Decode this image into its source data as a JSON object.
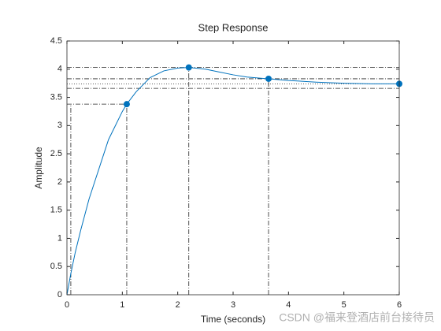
{
  "chart_data": {
    "type": "line",
    "title": "Step Response",
    "xlabel": "Time (seconds)",
    "ylabel": "Amplitude",
    "watermark": "CSDN @福来登酒店前台接待员",
    "xlim": [
      0,
      6
    ],
    "ylim": [
      0,
      4.5
    ],
    "xticks": [
      0,
      1,
      2,
      3,
      4,
      5,
      6
    ],
    "yticks": [
      0,
      0.5,
      1,
      1.5,
      2,
      2.5,
      3,
      3.5,
      4,
      4.5
    ],
    "series": [
      {
        "color": "#0072bd",
        "x": [
          0,
          0.07,
          0.15,
          0.25,
          0.4,
          0.5,
          0.75,
          1.0,
          1.08,
          1.25,
          1.5,
          1.75,
          2.0,
          2.2,
          2.5,
          2.75,
          3.0,
          3.25,
          3.5,
          3.64,
          4.0,
          4.5,
          5.0,
          5.5,
          6.0
        ],
        "values": [
          0,
          0.375,
          0.75,
          1.15,
          1.7,
          2.0,
          2.75,
          3.25,
          3.38,
          3.6,
          3.85,
          3.97,
          4.02,
          4.03,
          4.0,
          3.95,
          3.9,
          3.86,
          3.84,
          3.83,
          3.8,
          3.77,
          3.75,
          3.74,
          3.74
        ]
      },
      {
        "color": "#0072bd",
        "markers": true,
        "x": [
          1.08,
          2.2,
          3.64,
          6.0
        ],
        "values": [
          3.38,
          4.03,
          3.83,
          3.74
        ]
      }
    ],
    "ref_lines": [
      {
        "style": "dashdot",
        "x": [
          0.07,
          0.07
        ],
        "y": [
          0,
          3.38
        ]
      },
      {
        "style": "dashdot",
        "x": [
          0,
          1.08
        ],
        "y": [
          3.38,
          3.38
        ]
      },
      {
        "style": "dashdot",
        "x": [
          1.08,
          1.08
        ],
        "y": [
          0,
          3.38
        ]
      },
      {
        "style": "dashdot",
        "x": [
          2.2,
          2.2
        ],
        "y": [
          0,
          4.03
        ]
      },
      {
        "style": "dashdot",
        "x": [
          0,
          6
        ],
        "y": [
          4.03,
          4.03
        ]
      },
      {
        "style": "dashdot",
        "x": [
          3.64,
          3.64
        ],
        "y": [
          0,
          3.83
        ]
      },
      {
        "style": "dashdot",
        "x": [
          0,
          6
        ],
        "y": [
          3.83,
          3.83
        ]
      },
      {
        "style": "dashdot",
        "x": [
          0,
          6
        ],
        "y": [
          3.66,
          3.66
        ]
      },
      {
        "style": "dotted",
        "x": [
          0,
          6
        ],
        "y": [
          3.74,
          3.74
        ]
      }
    ]
  }
}
